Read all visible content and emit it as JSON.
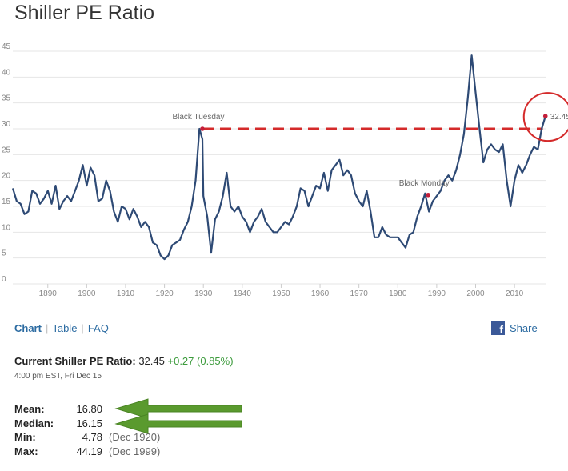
{
  "page": {
    "title": "Shiller PE Ratio"
  },
  "tabs": [
    {
      "label": "Chart",
      "active": true
    },
    {
      "label": "Table",
      "active": false
    },
    {
      "label": "FAQ",
      "active": false
    }
  ],
  "share": {
    "label": "Share",
    "icon": "facebook-icon"
  },
  "current": {
    "label": "Current Shiller PE Ratio:",
    "value": "32.45",
    "change": "+0.27 (0.85%)",
    "timestamp": "4:00 pm EST, Fri Dec 15"
  },
  "stats": [
    {
      "label": "Mean:",
      "value": "16.80",
      "date": ""
    },
    {
      "label": "Median:",
      "value": "16.15",
      "date": ""
    },
    {
      "label": "Min:",
      "value": "4.78",
      "date": "(Dec 1920)"
    },
    {
      "label": "Max:",
      "value": "44.19",
      "date": "(Dec 1999)"
    }
  ],
  "colors": {
    "line": "#2e4a75",
    "dashed_line": "#d42a2a",
    "highlight_circle": "#d42a2a",
    "arrow": "#5a9a2e",
    "link": "#2d6ca2",
    "positive": "#3c9b3c"
  },
  "chart_data": {
    "type": "line",
    "title": "",
    "xlabel": "",
    "ylabel": "",
    "xlim": [
      1881,
      2018
    ],
    "ylim": [
      0,
      45
    ],
    "x_ticks": [
      1890,
      1900,
      1910,
      1920,
      1930,
      1940,
      1950,
      1960,
      1970,
      1980,
      1990,
      2000,
      2010
    ],
    "y_ticks": [
      0,
      5,
      10,
      15,
      20,
      25,
      30,
      35,
      40,
      45
    ],
    "grid": "horizontal",
    "series": [
      {
        "name": "",
        "x": [
          1881,
          1882,
          1883,
          1884,
          1885,
          1886,
          1887,
          1888,
          1889,
          1890,
          1891,
          1892,
          1893,
          1894,
          1895,
          1896,
          1897,
          1898,
          1899,
          1900,
          1901,
          1902,
          1903,
          1904,
          1905,
          1906,
          1907,
          1908,
          1909,
          1910,
          1911,
          1912,
          1913,
          1914,
          1915,
          1916,
          1917,
          1918,
          1919,
          1920,
          1921,
          1922,
          1923,
          1924,
          1925,
          1926,
          1927,
          1928,
          1929,
          1929.75,
          1930,
          1931,
          1932,
          1933,
          1934,
          1935,
          1936,
          1937,
          1938,
          1939,
          1940,
          1941,
          1942,
          1943,
          1944,
          1945,
          1946,
          1947,
          1948,
          1949,
          1950,
          1951,
          1952,
          1953,
          1954,
          1955,
          1956,
          1957,
          1958,
          1959,
          1960,
          1961,
          1962,
          1963,
          1964,
          1965,
          1966,
          1967,
          1968,
          1969,
          1970,
          1971,
          1972,
          1973,
          1974,
          1975,
          1976,
          1977,
          1978,
          1979,
          1980,
          1981,
          1982,
          1983,
          1984,
          1985,
          1986,
          1987,
          1988,
          1989,
          1990,
          1991,
          1992,
          1993,
          1994,
          1995,
          1996,
          1997,
          1998,
          1999,
          2000,
          2001,
          2002,
          2003,
          2004,
          2005,
          2006,
          2007,
          2008,
          2009,
          2010,
          2011,
          2012,
          2013,
          2014,
          2015,
          2016,
          2017,
          2017.95
        ],
        "values": [
          18.5,
          16,
          15.5,
          13.5,
          14,
          18,
          17.5,
          15.5,
          16.5,
          18,
          15.5,
          19,
          14.5,
          16,
          17,
          16,
          18,
          20,
          23,
          19,
          22.5,
          21,
          16,
          16.5,
          20,
          18,
          14,
          12,
          15,
          14.5,
          12.5,
          14.5,
          13,
          11,
          12,
          11,
          8,
          7.5,
          5.5,
          4.78,
          5.5,
          7.5,
          8,
          8.5,
          10.5,
          12,
          15,
          20,
          30,
          28,
          17,
          13,
          6,
          12.5,
          14,
          17,
          21.5,
          15,
          14,
          15,
          13,
          12,
          10,
          12,
          13,
          14.5,
          12,
          11,
          10,
          10,
          11,
          12,
          11.5,
          13,
          15,
          18.5,
          18,
          15,
          17,
          19,
          18.5,
          21.5,
          18,
          22,
          23,
          24,
          21,
          22,
          21,
          17.5,
          16,
          15,
          18,
          14,
          9,
          9,
          11,
          9.5,
          9,
          9,
          9,
          8,
          7,
          9.5,
          10,
          13,
          15,
          17.5,
          14,
          16,
          17,
          18,
          20,
          21,
          20,
          22,
          25,
          29,
          36,
          44.19,
          37,
          30,
          23.5,
          26,
          27,
          26,
          25.5,
          27,
          20,
          15,
          20,
          23,
          21.5,
          23,
          25,
          26.5,
          26,
          30,
          32.45
        ]
      }
    ],
    "annotations": [
      {
        "text": "Black Tuesday",
        "x": 1929.75,
        "y": 30
      },
      {
        "text": "Black Monday",
        "x": 1987.8,
        "y": 17.2
      },
      {
        "text": "32.45",
        "x": 2017.95,
        "y": 32.45
      }
    ],
    "reference_line": {
      "y": 30,
      "from_x": 1929.75,
      "to_x": 2017.3,
      "style": "dashed"
    },
    "legend": "none"
  }
}
